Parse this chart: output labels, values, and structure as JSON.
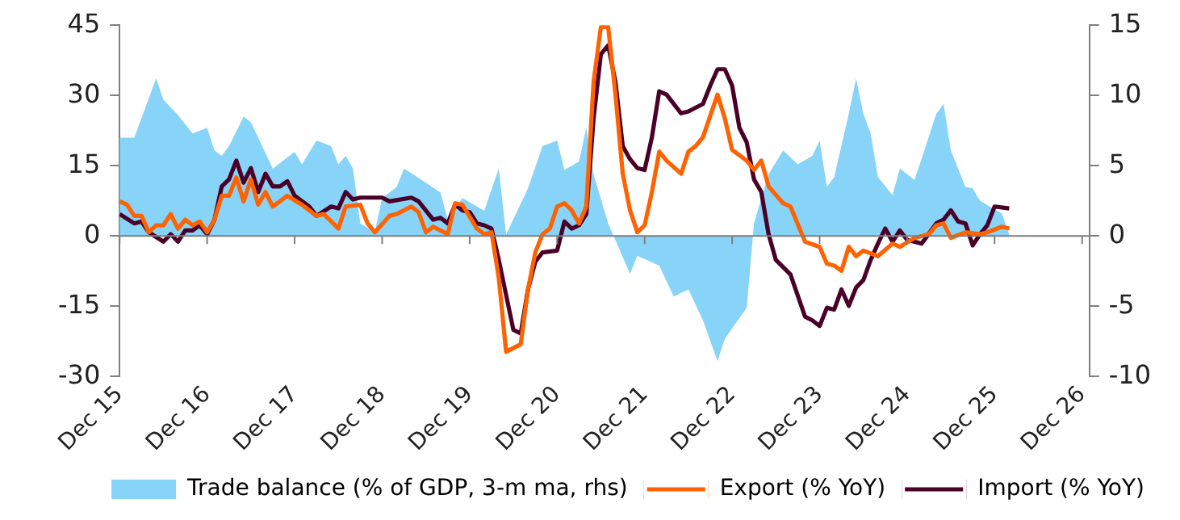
{
  "chart_data": {
    "type": "line",
    "xlim": [
      "2015-12",
      "2027-01"
    ],
    "xticks": [
      {
        "value": "2015-12",
        "label": "Dec 15"
      },
      {
        "value": "2016-12",
        "label": "Dec 16"
      },
      {
        "value": "2017-12",
        "label": "Dec 17"
      },
      {
        "value": "2018-12",
        "label": "Dec 18"
      },
      {
        "value": "2019-12",
        "label": "Dec 19"
      },
      {
        "value": "2020-12",
        "label": "Dec 20"
      },
      {
        "value": "2021-12",
        "label": "Dec 21"
      },
      {
        "value": "2022-12",
        "label": "Dec 22"
      },
      {
        "value": "2023-12",
        "label": "Dec 23"
      },
      {
        "value": "2024-12",
        "label": "Dec 24"
      },
      {
        "value": "2025-12",
        "label": "Dec 25"
      },
      {
        "value": "2026-12",
        "label": "Dec 26"
      }
    ],
    "ylim": [
      -30,
      45
    ],
    "yticks": [
      -30,
      -15,
      0,
      15,
      30,
      45
    ],
    "y2lim": [
      -10,
      15
    ],
    "y2ticks": [
      -10,
      -5,
      0,
      5,
      10,
      15
    ],
    "legend": "bottom",
    "marker": "none",
    "series": [
      {
        "name": "Trade balance (% of GDP, 3-m ma, rhs)",
        "type": "area",
        "axis": "y2",
        "color": "#87d4f8",
        "x": [
          "2015-12",
          "2016-02",
          "2016-05",
          "2016-06",
          "2016-08",
          "2016-10",
          "2016-12",
          "2017-01",
          "2017-02",
          "2017-03",
          "2017-05",
          "2017-06",
          "2017-09",
          "2017-12",
          "2018-01",
          "2018-03",
          "2018-05",
          "2018-06",
          "2018-07",
          "2018-08",
          "2018-09",
          "2018-11",
          "2018-12",
          "2019-02",
          "2019-03",
          "2019-06",
          "2019-08",
          "2019-09",
          "2019-11",
          "2020-02",
          "2020-04",
          "2020-05",
          "2020-08",
          "2020-10",
          "2020-12",
          "2021-01",
          "2021-03",
          "2021-04",
          "2021-05",
          "2021-07",
          "2021-10",
          "2021-11",
          "2022-02",
          "2022-04",
          "2022-06",
          "2022-08",
          "2022-10",
          "2022-11",
          "2023-02",
          "2023-03",
          "2023-05",
          "2023-07",
          "2023-09",
          "2023-11",
          "2023-12",
          "2024-01",
          "2024-02",
          "2024-04",
          "2024-05",
          "2024-06",
          "2024-07",
          "2024-08",
          "2024-10",
          "2024-11",
          "2025-01",
          "2025-02",
          "2025-04",
          "2025-05",
          "2025-06",
          "2025-08",
          "2025-09",
          "2025-10",
          "2025-11",
          "2026-01",
          "2026-02"
        ],
        "values": [
          7.0,
          7.0,
          11.2,
          9.7,
          8.6,
          7.3,
          7.7,
          6.1,
          5.7,
          6.4,
          8.5,
          8.1,
          4.8,
          6.0,
          5.1,
          6.8,
          6.4,
          5.1,
          5.7,
          4.8,
          0.9,
          0.3,
          2.7,
          3.5,
          4.8,
          3.8,
          3.1,
          1.2,
          2.7,
          1.8,
          4.8,
          0.1,
          3.4,
          6.4,
          6.8,
          4.7,
          5.3,
          7.7,
          4.4,
          0.9,
          -2.7,
          -1.4,
          -2.1,
          -4.3,
          -3.8,
          -6.0,
          -8.9,
          -7.3,
          -5.1,
          0.9,
          4.4,
          6.1,
          5.1,
          5.7,
          6.8,
          3.5,
          4.2,
          8.7,
          11.2,
          8.7,
          7.3,
          4.2,
          2.9,
          4.8,
          4.0,
          5.5,
          8.7,
          9.4,
          6.1,
          3.5,
          3.4,
          2.5,
          2.2,
          1.6,
          0.1
        ]
      },
      {
        "name": "Export (% YoY)",
        "type": "line",
        "color": "#ff6200",
        "x": [
          "2015-12",
          "2016-01",
          "2016-02",
          "2016-03",
          "2016-04",
          "2016-05",
          "2016-06",
          "2016-07",
          "2016-08",
          "2016-09",
          "2016-10",
          "2016-11",
          "2016-12",
          "2017-01",
          "2017-02",
          "2017-03",
          "2017-04",
          "2017-05",
          "2017-06",
          "2017-07",
          "2017-08",
          "2017-09",
          "2017-11",
          "2018-01",
          "2018-03",
          "2018-04",
          "2018-06",
          "2018-07",
          "2018-09",
          "2018-10",
          "2018-11",
          "2019-01",
          "2019-02",
          "2019-04",
          "2019-05",
          "2019-06",
          "2019-07",
          "2019-09",
          "2019-10",
          "2019-11",
          "2020-01",
          "2020-02",
          "2020-03",
          "2020-04",
          "2020-05",
          "2020-07",
          "2020-08",
          "2020-09",
          "2020-10",
          "2020-11",
          "2020-12",
          "2021-01",
          "2021-02",
          "2021-03",
          "2021-04",
          "2021-05",
          "2021-06",
          "2021-07",
          "2021-08",
          "2021-09",
          "2021-10",
          "2021-11",
          "2021-12",
          "2022-01",
          "2022-02",
          "2022-03",
          "2022-05",
          "2022-06",
          "2022-07",
          "2022-08",
          "2022-10",
          "2022-11",
          "2022-12",
          "2023-02",
          "2023-03",
          "2023-04",
          "2023-05",
          "2023-07",
          "2023-08",
          "2023-10",
          "2023-12",
          "2024-01",
          "2024-02",
          "2024-03",
          "2024-04",
          "2024-05",
          "2024-06",
          "2024-08",
          "2024-10",
          "2024-11",
          "2025-01",
          "2025-03",
          "2025-04",
          "2025-05",
          "2025-06",
          "2025-08",
          "2025-10",
          "2025-11",
          "2026-01",
          "2026-02"
        ],
        "values": [
          7.4,
          6.7,
          4.3,
          4.3,
          0.8,
          2.3,
          2.3,
          4.7,
          1.6,
          3.5,
          2.3,
          3.1,
          0.8,
          3.5,
          8.6,
          8.6,
          12.5,
          7.4,
          12.1,
          6.7,
          9.4,
          6.3,
          8.6,
          6.7,
          4.3,
          4.7,
          1.6,
          6.3,
          6.7,
          2.7,
          0.8,
          4.3,
          4.7,
          6.3,
          5.1,
          0.8,
          2.0,
          0.4,
          7.0,
          6.7,
          1.6,
          0.4,
          0.8,
          -9.0,
          -24.7,
          -23.1,
          -11.4,
          -3.5,
          0.4,
          1.6,
          6.3,
          7.0,
          5.5,
          2.7,
          6.3,
          32.9,
          44.6,
          44.6,
          30.2,
          13.3,
          5.5,
          0.8,
          2.3,
          9.4,
          18.0,
          16.1,
          13.3,
          18.0,
          19.2,
          21.1,
          30.2,
          25.1,
          18.4,
          16.1,
          14.1,
          16.1,
          10.6,
          7.0,
          6.3,
          -1.2,
          -2.3,
          -5.9,
          -6.3,
          -7.4,
          -2.3,
          -4.3,
          -3.1,
          -4.3,
          -1.6,
          -2.3,
          -0.4,
          0.4,
          2.3,
          2.7,
          -0.4,
          0.8,
          0.4,
          0.8,
          2.0,
          1.6
        ]
      },
      {
        "name": "Import (% YoY)",
        "type": "line",
        "color": "#4a0027",
        "x": [
          "2015-12",
          "2016-02",
          "2016-03",
          "2016-04",
          "2016-06",
          "2016-07",
          "2016-08",
          "2016-09",
          "2016-10",
          "2016-11",
          "2016-12",
          "2017-01",
          "2017-02",
          "2017-03",
          "2017-04",
          "2017-05",
          "2017-06",
          "2017-07",
          "2017-08",
          "2017-09",
          "2017-10",
          "2017-11",
          "2017-12",
          "2018-02",
          "2018-03",
          "2018-05",
          "2018-06",
          "2018-07",
          "2018-08",
          "2018-09",
          "2018-12",
          "2019-01",
          "2019-04",
          "2019-05",
          "2019-07",
          "2019-08",
          "2019-09",
          "2019-10",
          "2019-11",
          "2019-12",
          "2020-01",
          "2020-02",
          "2020-03",
          "2020-04",
          "2020-06",
          "2020-07",
          "2020-08",
          "2020-09",
          "2020-10",
          "2020-12",
          "2021-01",
          "2021-02",
          "2021-03",
          "2021-04",
          "2021-05",
          "2021-06",
          "2021-07",
          "2021-08",
          "2021-09",
          "2021-10",
          "2021-11",
          "2021-12",
          "2022-01",
          "2022-02",
          "2022-03",
          "2022-05",
          "2022-06",
          "2022-08",
          "2022-09",
          "2022-10",
          "2022-11",
          "2022-12",
          "2023-01",
          "2023-02",
          "2023-03",
          "2023-04",
          "2023-05",
          "2023-06",
          "2023-08",
          "2023-10",
          "2023-11",
          "2023-12",
          "2024-01",
          "2024-02",
          "2024-03",
          "2024-04",
          "2024-05",
          "2024-06",
          "2024-07",
          "2024-08",
          "2024-09",
          "2024-10",
          "2024-11",
          "2024-12",
          "2025-02",
          "2025-04",
          "2025-05",
          "2025-06",
          "2025-07",
          "2025-08",
          "2025-09",
          "2025-10",
          "2025-11",
          "2025-12",
          "2026-02"
        ],
        "values": [
          4.7,
          2.7,
          3.1,
          0.8,
          -1.2,
          0.4,
          -1.2,
          1.2,
          1.2,
          2.3,
          0.4,
          3.5,
          10.6,
          12.1,
          16.1,
          11.4,
          14.5,
          9.4,
          13.3,
          10.6,
          10.6,
          11.7,
          8.6,
          6.3,
          4.3,
          6.3,
          5.9,
          9.4,
          7.8,
          8.2,
          8.2,
          7.4,
          8.2,
          7.4,
          3.5,
          3.9,
          2.7,
          6.7,
          5.5,
          5.1,
          2.7,
          2.3,
          1.6,
          -5.1,
          -20.0,
          -20.8,
          -11.4,
          -5.5,
          -3.5,
          -3.1,
          3.1,
          1.6,
          2.3,
          4.7,
          25.1,
          38.8,
          40.7,
          32.9,
          19.2,
          16.4,
          14.5,
          14.1,
          21.1,
          30.9,
          30.2,
          26.2,
          26.6,
          28.2,
          32.1,
          35.6,
          35.6,
          32.1,
          23.1,
          20.0,
          12.1,
          9.4,
          0.4,
          -5.1,
          -8.2,
          -17.2,
          -18.0,
          -19.2,
          -15.3,
          -15.7,
          -11.4,
          -14.9,
          -11.0,
          -9.4,
          -5.1,
          -1.6,
          1.6,
          -1.2,
          1.2,
          -0.8,
          -1.6,
          2.7,
          3.5,
          5.5,
          3.1,
          2.7,
          -2.0,
          0.4,
          2.3,
          6.3,
          5.9
        ]
      }
    ]
  }
}
